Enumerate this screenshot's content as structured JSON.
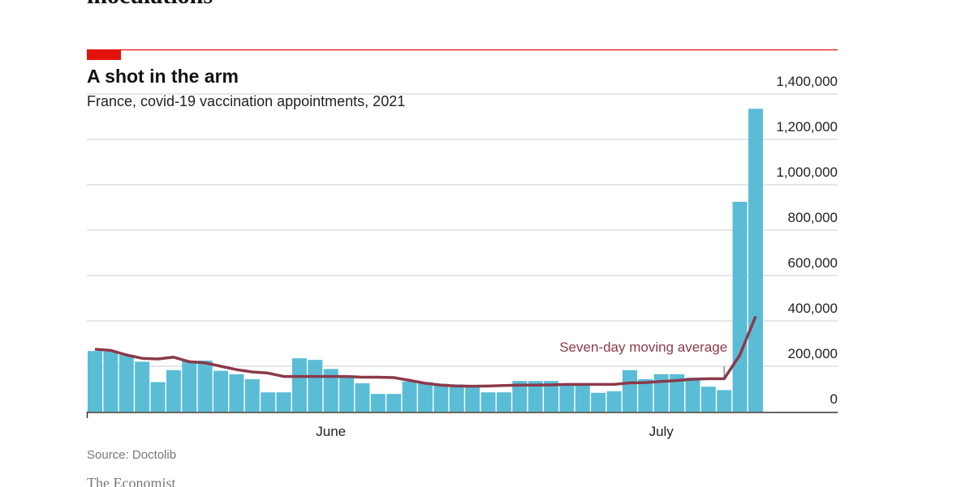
{
  "headline": "inoculations",
  "chart_data": {
    "type": "bar",
    "title": "A shot in the arm",
    "subtitle": "France, covid-19 vaccination appointments, 2021",
    "source": "Source: Doctolib",
    "categories": [
      null,
      null,
      null,
      null,
      null,
      null,
      null,
      null,
      null,
      null,
      null,
      null,
      null,
      null,
      null,
      "June",
      null,
      null,
      null,
      null,
      null,
      null,
      null,
      null,
      null,
      null,
      null,
      null,
      null,
      null,
      null,
      null,
      null,
      null,
      null,
      null,
      "July",
      null,
      null,
      null,
      null,
      null,
      null
    ],
    "series": [
      {
        "name": "Appointments",
        "color": "#5bbcd6",
        "values": [
          267000,
          265000,
          250000,
          220000,
          130000,
          183000,
          225000,
          225000,
          180000,
          165000,
          143000,
          85000,
          85000,
          235000,
          228000,
          188000,
          160000,
          125000,
          78000,
          78000,
          133000,
          130000,
          123000,
          120000,
          112000,
          85000,
          85000,
          135000,
          135000,
          135000,
          120000,
          120000,
          83000,
          90000,
          183000,
          143000,
          165000,
          165000,
          150000,
          110000,
          95000,
          925000,
          1335000
        ]
      },
      {
        "name": "Seven-day moving average",
        "type": "line",
        "color": "#8b3a4a",
        "values": [
          275000,
          270000,
          250000,
          235000,
          232000,
          240000,
          220000,
          215000,
          200000,
          185000,
          175000,
          170000,
          155000,
          155000,
          155000,
          155000,
          155000,
          152000,
          152000,
          150000,
          138000,
          125000,
          117000,
          113000,
          112000,
          113000,
          115000,
          117000,
          117000,
          118000,
          120000,
          120000,
          120000,
          120000,
          127000,
          128000,
          133000,
          137000,
          143000,
          145000,
          145000,
          250000,
          420000
        ]
      }
    ],
    "ylim": [
      0,
      1400000
    ],
    "yticks": [
      0,
      {
        "value": 200000,
        "label": "200,000"
      },
      {
        "value": 400000,
        "label": "400,000"
      },
      {
        "value": 600000,
        "label": "600,000"
      },
      {
        "value": 800000,
        "label": "800,000"
      },
      {
        "value": 1000000,
        "label": "1,000,000"
      },
      {
        "value": 1200000,
        "label": "1,200,000"
      },
      {
        "value": 1400000,
        "label": "1,400,000"
      }
    ],
    "grid": true
  },
  "footer": "The Economist"
}
